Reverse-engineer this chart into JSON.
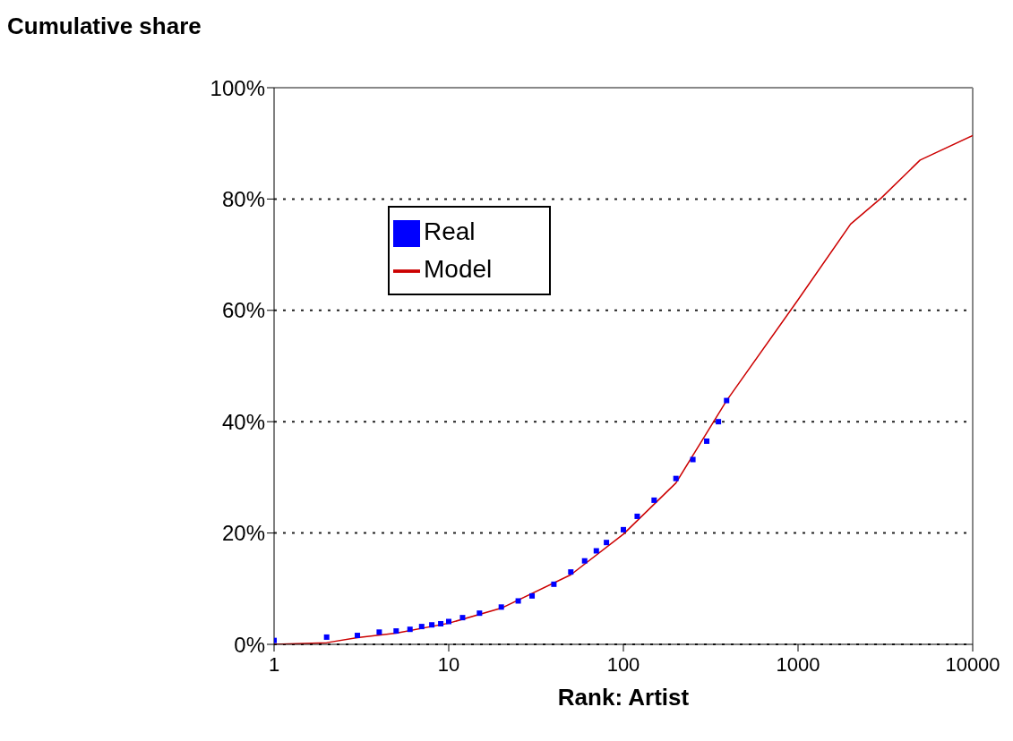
{
  "chart_data": {
    "type": "scatter",
    "ylabel": "Cumulative share",
    "xlabel": "Rank: Artist",
    "log": "x",
    "xlim": [
      1,
      10000
    ],
    "xticks": [
      1,
      10,
      100,
      1000,
      10000
    ],
    "ylim": [
      0,
      100
    ],
    "yticks": [
      {
        "value": 0,
        "label": "0%"
      },
      {
        "value": 20,
        "label": "20%"
      },
      {
        "value": 40,
        "label": "40%"
      },
      {
        "value": 60,
        "label": "60%"
      },
      {
        "value": 80,
        "label": "80%"
      },
      {
        "value": 100,
        "label": "100%"
      }
    ],
    "grid": "y",
    "legend": "top left",
    "series": [
      {
        "name": "Real",
        "marker": "square",
        "color": "#0000ff",
        "x": [
          1,
          2,
          3,
          4,
          5,
          6,
          7,
          8,
          9,
          10,
          12,
          15,
          20,
          25,
          30,
          40,
          50,
          60,
          70,
          80,
          100,
          120,
          150,
          200,
          250,
          300,
          350,
          390
        ],
        "values": [
          0.7,
          1.3,
          1.6,
          2.2,
          2.4,
          2.7,
          3.2,
          3.5,
          3.7,
          4.1,
          4.8,
          5.6,
          6.7,
          7.8,
          8.7,
          10.8,
          13,
          15,
          16.8,
          18.3,
          20.6,
          23,
          25.9,
          29.8,
          33.2,
          36.5,
          40,
          43.8
        ]
      },
      {
        "name": "Model",
        "type": "line",
        "marker": "none",
        "color": "#cc0000",
        "x": [
          1,
          2,
          3,
          5,
          10,
          20,
          50,
          100,
          200,
          390,
          1000,
          2000,
          3000,
          5000,
          10000
        ],
        "values": [
          0,
          0.3,
          1.2,
          2,
          3.8,
          6.5,
          12.5,
          19.8,
          29,
          43.8,
          61.9,
          75.5,
          80.2,
          87,
          91.4
        ]
      }
    ]
  }
}
